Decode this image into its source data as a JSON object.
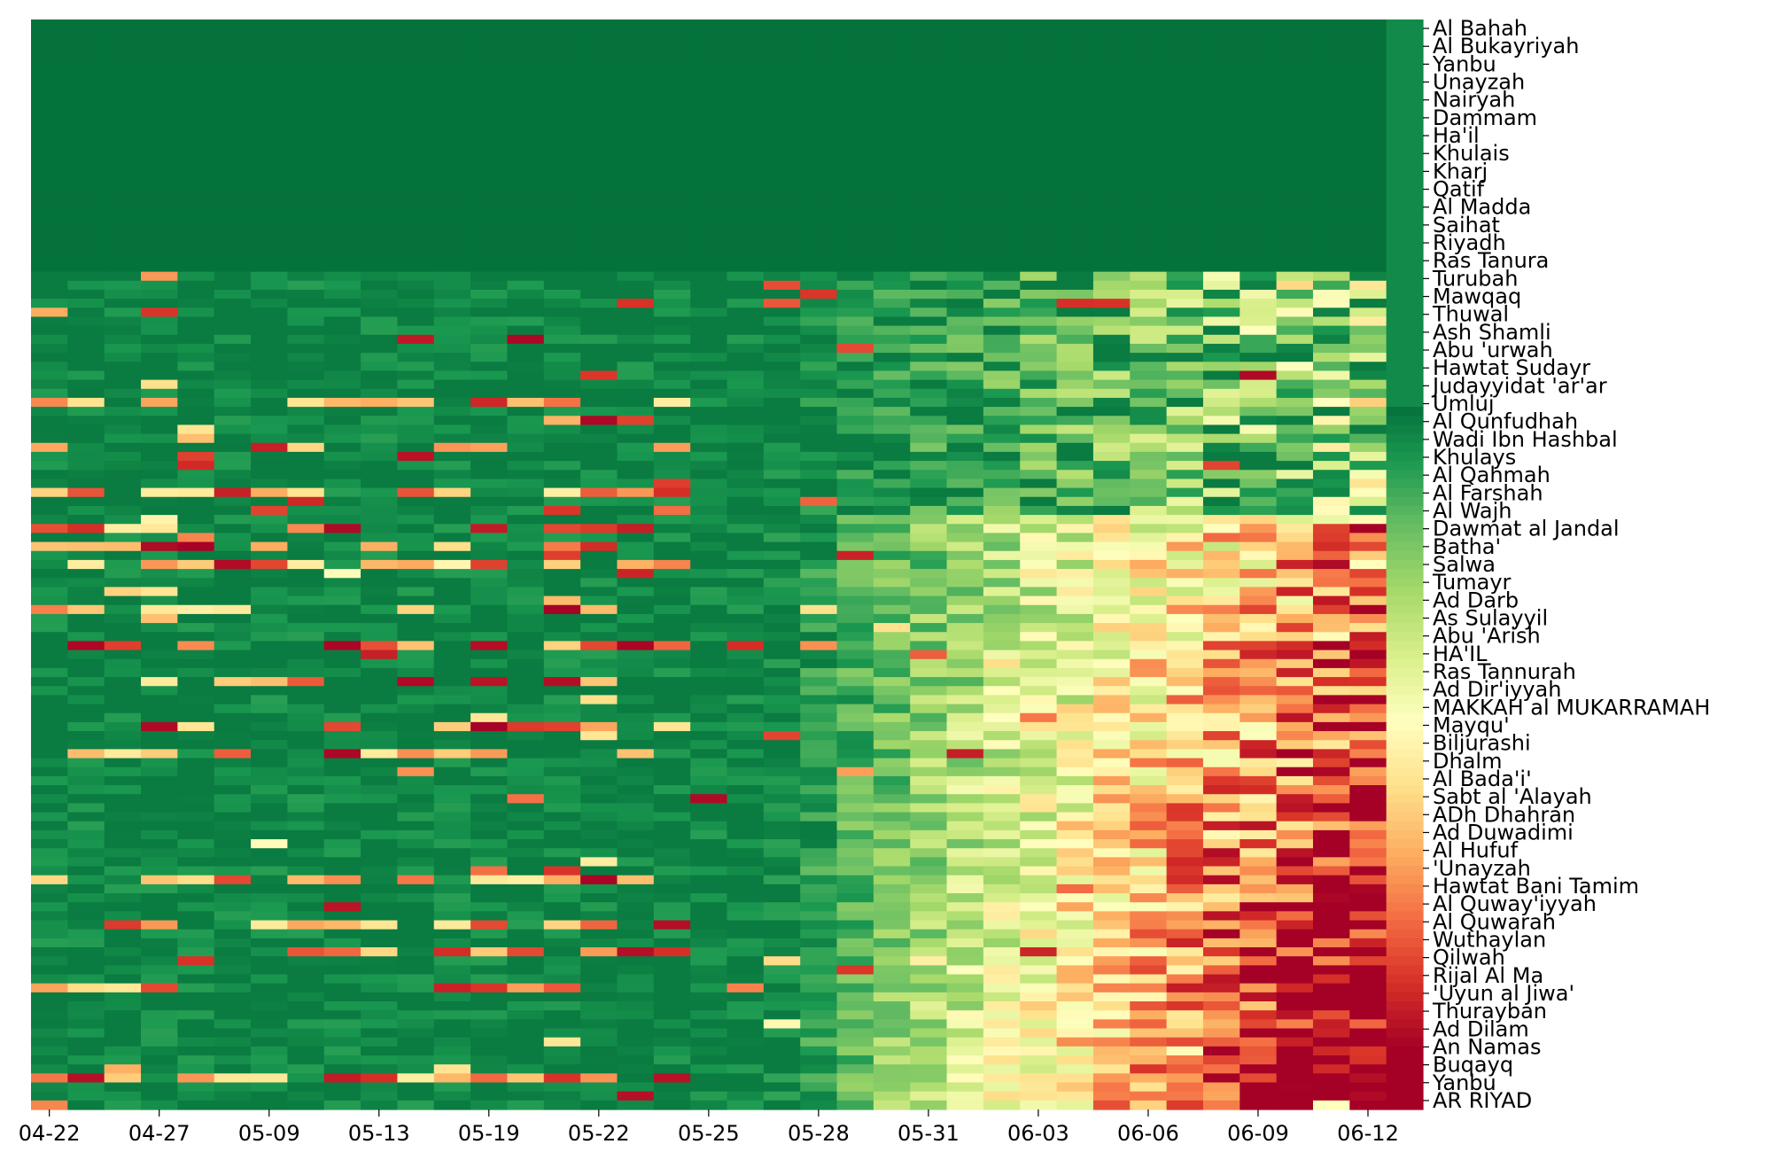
{
  "chart_data": {
    "type": "heatmap",
    "title": "",
    "xlabel": "",
    "ylabel": "",
    "colormap": "RdYlGn_r",
    "colors": {
      "low": "#0e8142",
      "mid": "#fdfebd",
      "high": "#be1b28"
    },
    "value_range": [
      0,
      1
    ],
    "x_ticks": [
      "04-22",
      "04-27",
      "05-09",
      "05-13",
      "05-19",
      "05-22",
      "05-25",
      "05-28",
      "05-31",
      "06-03",
      "06-06",
      "06-09",
      "06-12"
    ],
    "y_labels": [
      "Al Bahah",
      "Al Bukayriyah",
      "Yanbu",
      "Unayzah",
      "Nairyah",
      "Dammam",
      "Ha'il",
      "Khulais",
      "Kharj",
      "Qatif",
      "Al Madda",
      "Saihat",
      "Riyadh",
      "Ras Tanura",
      "Turubah",
      "Mawqaq",
      "Thuwal",
      "Ash Shamli",
      "Abu 'urwah",
      "Hawtat Sudayr",
      "Judayyidat 'ar'ar",
      "Umluj",
      "Al Qunfudhah",
      "Wadi Ibn Hashbal",
      "Khulays",
      "Al Qahmah",
      "Al Farshah",
      "Al Wajh",
      "Dawmat al Jandal",
      "Batha'",
      "Salwa",
      "Tumayr",
      "Ad Darb",
      "As Sulayyil",
      "Abu 'Arish",
      "HA'IL",
      "Ras Tannurah",
      "Ad Dir'iyyah",
      "MAKKAH al MUKARRAMAH",
      "Mayqu'",
      "Biljurashi",
      "Dhalm",
      "Al Bada'i'",
      "Sabt al 'Alayah",
      "ADh Dhahran",
      "Ad Duwadimi",
      "Al Hufuf",
      "'Unayzah",
      "Hawtat Bani Tamim",
      "Al Quway'iyyah",
      "Al Quwarah",
      "Wuthaylan",
      "Qilwah",
      "Rijal Al Ma",
      "'Uyun al Jiwa'",
      "Thurayban",
      "Ad Dilam",
      "An Namas",
      "Buqayq",
      "Yanbu",
      "AR RIYAD"
    ],
    "rows": 121,
    "columns": 38,
    "final_column_gradient": "green at top rows to red at bottom rows",
    "grid": false,
    "legend": "none"
  }
}
